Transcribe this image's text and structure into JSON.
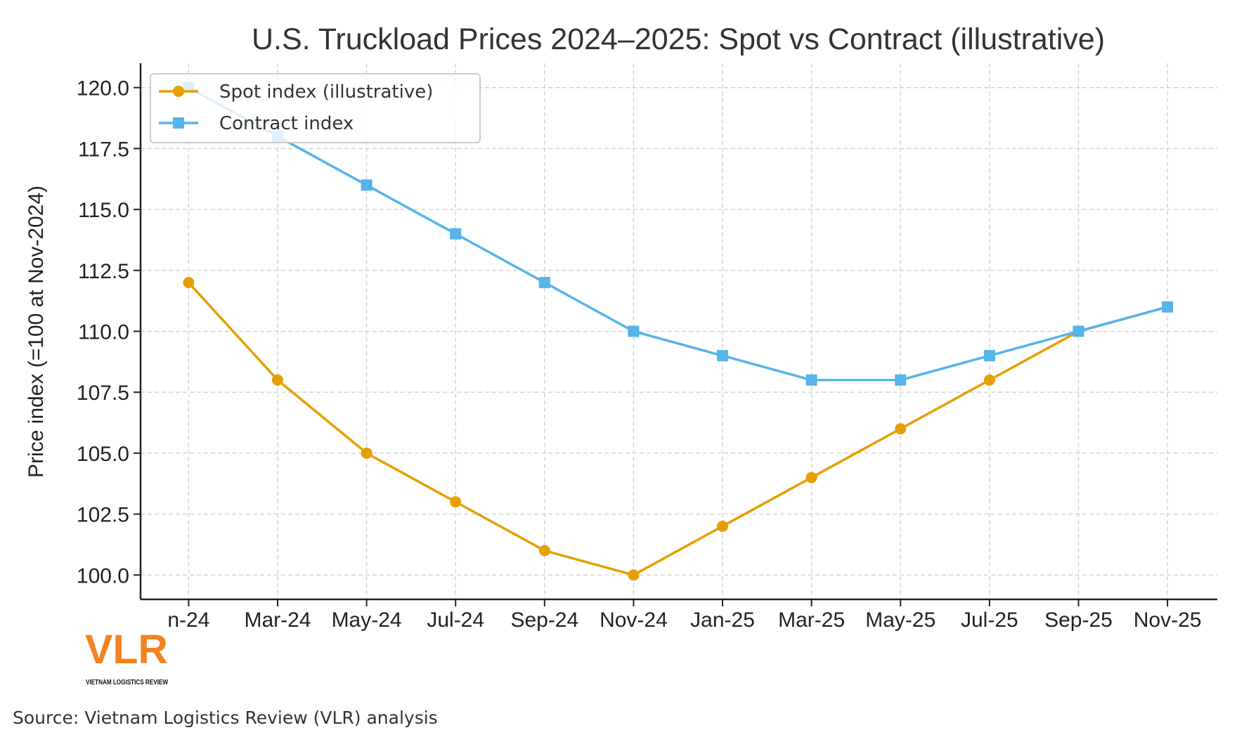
{
  "chart_data": {
    "type": "line",
    "title": "U.S. Truckload Prices 2024–2025: Spot vs Contract (illustrative)",
    "xlabel": "",
    "ylabel": "Price index (=100 at Nov-2024)",
    "categories": [
      "n-24",
      "Mar-24",
      "May-24",
      "Jul-24",
      "Sep-24",
      "Nov-24",
      "Jan-25",
      "Mar-25",
      "May-25",
      "Jul-25",
      "Sep-25",
      "Nov-25"
    ],
    "yticks": [
      "100.0",
      "102.5",
      "105.0",
      "107.5",
      "110.0",
      "112.5",
      "115.0",
      "117.5",
      "120.0"
    ],
    "ylim": [
      99,
      121
    ],
    "grid": true,
    "legend_position": "top-left",
    "series": [
      {
        "name": "Spot index (illustrative)",
        "marker": "circle",
        "color": "#E69F00",
        "values": [
          112,
          108,
          105,
          103,
          101,
          100,
          102,
          104,
          106,
          108,
          110,
          111
        ]
      },
      {
        "name": "Contract index",
        "marker": "square",
        "color": "#56B4E9",
        "values": [
          120,
          118,
          116,
          114,
          112,
          110,
          109,
          108,
          108,
          109,
          110,
          111
        ]
      }
    ]
  },
  "logo": {
    "text": "VLR",
    "subtext": "VIETNAM LOGISTICS REVIEW",
    "color": "#F28322"
  },
  "source": "Source: Vietnam Logistics Review (VLR) analysis"
}
